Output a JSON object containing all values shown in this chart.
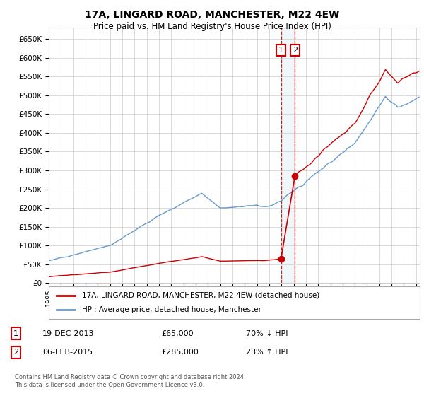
{
  "title": "17A, LINGARD ROAD, MANCHESTER, M22 4EW",
  "subtitle": "Price paid vs. HM Land Registry's House Price Index (HPI)",
  "ylim": [
    0,
    680000
  ],
  "yticks": [
    0,
    50000,
    100000,
    150000,
    200000,
    250000,
    300000,
    350000,
    400000,
    450000,
    500000,
    550000,
    600000,
    650000
  ],
  "xlim_start": 1995.0,
  "xlim_end": 2025.3,
  "line_color_property": "#cc0000",
  "line_color_hpi": "#6699cc",
  "legend_label_property": "17A, LINGARD ROAD, MANCHESTER, M22 4EW (detached house)",
  "legend_label_hpi": "HPI: Average price, detached house, Manchester",
  "transaction1_date": "19-DEC-2013",
  "transaction1_price": "£65,000",
  "transaction1_hpi": "70% ↓ HPI",
  "transaction1_x": 2013.97,
  "transaction1_y": 65000,
  "transaction2_date": "06-FEB-2015",
  "transaction2_price": "£285,000",
  "transaction2_hpi": "23% ↑ HPI",
  "transaction2_x": 2015.1,
  "transaction2_y": 285000,
  "footer": "Contains HM Land Registry data © Crown copyright and database right 2024.\nThis data is licensed under the Open Government Licence v3.0.",
  "background_color": "#ffffff",
  "grid_color": "#cccccc",
  "shaded_region_x1": 2013.97,
  "shaded_region_x2": 2015.1
}
